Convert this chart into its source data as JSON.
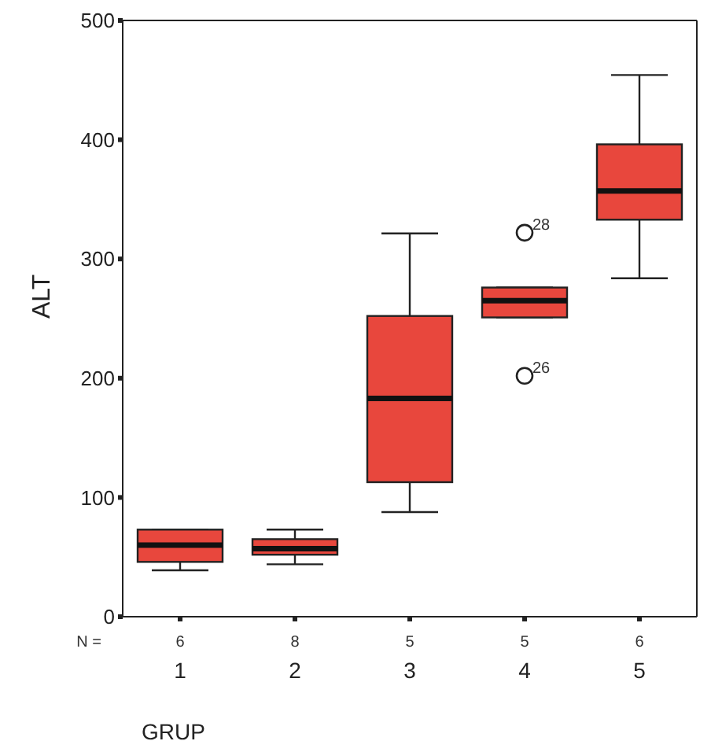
{
  "chart_data": {
    "type": "box",
    "xlabel": "GRUP",
    "ylabel": "ALT",
    "categories": [
      "1",
      "2",
      "3",
      "4",
      "5"
    ],
    "color": "#e8473d",
    "marker": "circle",
    "ylim": [
      0,
      500
    ],
    "yticks": [
      0,
      100,
      200,
      300,
      400,
      500
    ],
    "boxes": [
      {
        "low": 39,
        "q1": 46,
        "median": 60,
        "q3": 73,
        "high": 73
      },
      {
        "low": 44,
        "q1": 52,
        "median": 57,
        "q3": 65,
        "high": 73
      },
      {
        "low": 88,
        "q1": 113,
        "median": 183,
        "q3": 252,
        "high": 321
      },
      {
        "low": 251,
        "q1": 251,
        "median": 265,
        "q3": 276,
        "high": 276,
        "outliers": [
          322,
          202
        ]
      },
      {
        "low": 284,
        "q1": 333,
        "median": 357,
        "q3": 396,
        "high": 454
      }
    ],
    "annotations": [
      "N =",
      "6",
      "8",
      "5",
      "5",
      "6",
      "28",
      "26"
    ]
  }
}
